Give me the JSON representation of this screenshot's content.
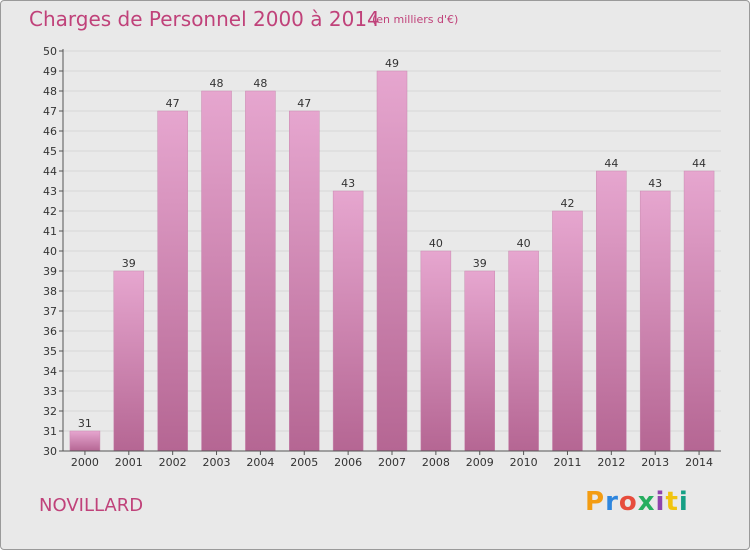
{
  "header": {
    "title": "Charges de Personnel 2000 à 2014",
    "subtitle": "(en milliers d'€)"
  },
  "footer": {
    "commune": "NOVILLARD",
    "logo_text": "Proxiti",
    "logo_colors": [
      "#f39c12",
      "#2e86de",
      "#e74c3c",
      "#27ae60",
      "#8e44ad",
      "#f1c40f",
      "#16a085"
    ]
  },
  "colors": {
    "accent": "#c0427a",
    "bar_top": "#e6a6cf",
    "bar_bottom": "#b56693",
    "plot_bg": "#e9e9e9"
  },
  "chart_data": {
    "type": "bar",
    "title": "Charges de Personnel 2000 à 2014",
    "subtitle": "(en milliers d'€)",
    "categories": [
      "2000",
      "2001",
      "2002",
      "2003",
      "2004",
      "2005",
      "2006",
      "2007",
      "2008",
      "2009",
      "2010",
      "2011",
      "2012",
      "2013",
      "2014"
    ],
    "values": [
      31,
      39,
      47,
      48,
      48,
      47,
      43,
      49,
      40,
      39,
      40,
      42,
      44,
      43,
      44
    ],
    "ylim": [
      30,
      50
    ],
    "yticks": [
      30,
      31,
      32,
      33,
      34,
      35,
      36,
      37,
      38,
      39,
      40,
      41,
      42,
      43,
      44,
      45,
      46,
      47,
      48,
      49,
      50
    ],
    "grid": true,
    "legend": "none"
  }
}
